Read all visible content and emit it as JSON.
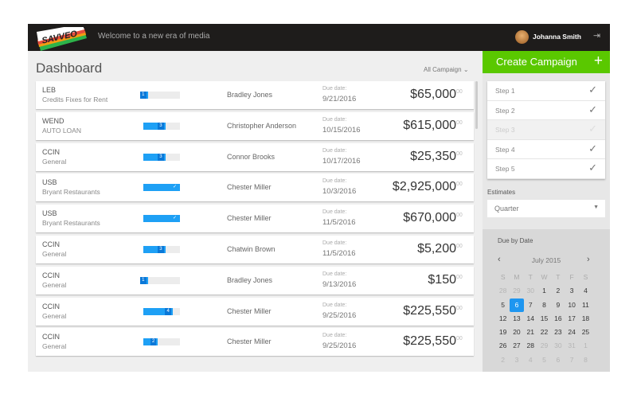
{
  "header": {
    "logo": "SAVVEO",
    "welcome": "Welcome to a new era of media",
    "user": "Johanna Smith"
  },
  "main": {
    "title": "Dashboard",
    "filter": "All Campaign",
    "rows": [
      {
        "code": "LEB",
        "sub": "Credits Fixes for Rent",
        "step": "1",
        "progress": 12,
        "person": "Bradley Jones",
        "due_label": "Due date:",
        "due": "9/21/2016",
        "amount": "$65,000",
        "cents": "00"
      },
      {
        "code": "WEND",
        "sub": "AUTO LOAN",
        "step": "3",
        "progress": 60,
        "person": "Christopher Anderson",
        "due_label": "Due date:",
        "due": "10/15/2016",
        "amount": "$615,000",
        "cents": "00"
      },
      {
        "code": "CCIN",
        "sub": "General",
        "step": "3",
        "progress": 60,
        "person": "Connor Brooks",
        "due_label": "Due date:",
        "due": "10/17/2016",
        "amount": "$25,350",
        "cents": "00"
      },
      {
        "code": "USB",
        "sub": "Bryant Restaurants",
        "step": "✓",
        "progress": 100,
        "person": "Chester Miller",
        "due_label": "Due date:",
        "due": "10/3/2016",
        "amount": "$2,925,000",
        "cents": "00"
      },
      {
        "code": "USB",
        "sub": "Bryant Restaurants",
        "step": "✓",
        "progress": 100,
        "person": "Chester Miller",
        "due_label": "Due date:",
        "due": "11/5/2016",
        "amount": "$670,000",
        "cents": "00"
      },
      {
        "code": "CCIN",
        "sub": "General",
        "step": "3",
        "progress": 60,
        "person": "Chatwin Brown",
        "due_label": "Due date:",
        "due": "11/5/2016",
        "amount": "$5,200",
        "cents": "00"
      },
      {
        "code": "CCIN",
        "sub": "General",
        "step": "1",
        "progress": 12,
        "person": "Bradley Jones",
        "due_label": "Due date:",
        "due": "9/13/2016",
        "amount": "$150",
        "cents": "00"
      },
      {
        "code": "CCIN",
        "sub": "General",
        "step": "4",
        "progress": 80,
        "person": "Chester Miller",
        "due_label": "Due date:",
        "due": "9/25/2016",
        "amount": "$225,550",
        "cents": "00"
      },
      {
        "code": "CCIN",
        "sub": "General",
        "step": "2",
        "progress": 40,
        "person": "Chester Miller",
        "due_label": "Due date:",
        "due": "9/25/2016",
        "amount": "$225,550",
        "cents": "00"
      }
    ]
  },
  "sidebar": {
    "create": "Create Campaign",
    "plus": "+",
    "steps": [
      {
        "label": "Step 1",
        "done": true
      },
      {
        "label": "Step 2",
        "done": true
      },
      {
        "label": "Step 3",
        "done": false
      },
      {
        "label": "Step 4",
        "done": true
      },
      {
        "label": "Step 5",
        "done": true
      }
    ],
    "estimates_label": "Estimates",
    "estimates_value": "Quarter",
    "calendar": {
      "title": "Due by Date",
      "month": "July 2015",
      "weekdays": [
        "S",
        "M",
        "T",
        "W",
        "T",
        "F",
        "S"
      ],
      "days": [
        "28",
        "29",
        "30",
        "1",
        "2",
        "3",
        "4",
        "5",
        "6",
        "7",
        "8",
        "9",
        "10",
        "11",
        "12",
        "13",
        "14",
        "15",
        "16",
        "17",
        "18",
        "19",
        "20",
        "21",
        "22",
        "23",
        "24",
        "25",
        "26",
        "27",
        "28",
        "29",
        "30",
        "31",
        "1",
        "2",
        "3",
        "4",
        "5",
        "6",
        "7",
        "8"
      ],
      "selected": "6"
    }
  },
  "colors": {
    "accent": "#1ea0f5",
    "green": "#5ac800",
    "header": "#1e1c1b"
  }
}
